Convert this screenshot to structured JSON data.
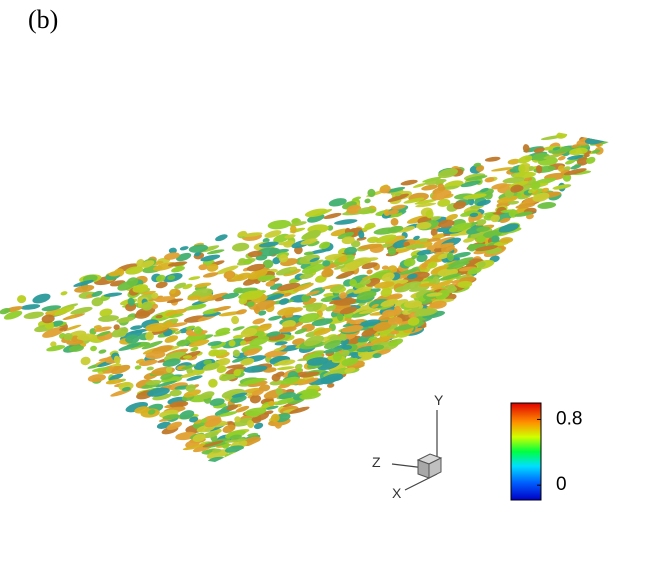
{
  "panel_label": "(b)",
  "axes_triad": {
    "y_label": "Y",
    "z_label": "Z",
    "x_label": "X"
  },
  "colorbar": {
    "lim": [
      -0.18,
      1.0
    ],
    "ticks": [
      0,
      0.8
    ]
  }
}
